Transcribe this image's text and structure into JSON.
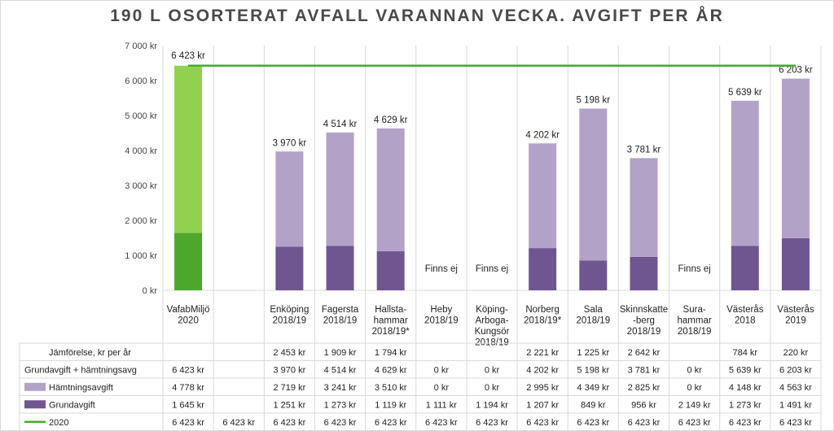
{
  "chart_data": {
    "type": "bar",
    "title": "190 L OSORTERAT AVFALL VARANNAN VECKA. AVGIFT PER ÅR",
    "ylim": [
      0,
      7000
    ],
    "yticks": [
      "0 kr",
      "1 000 kr",
      "2 000 kr",
      "3 000 kr",
      "4 000 kr",
      "5 000 kr",
      "6 000 kr",
      "7 000 kr"
    ],
    "categories": [
      [
        "VafabMiljö",
        "2020"
      ],
      [],
      [
        "Enköping",
        "2018/19"
      ],
      [
        "Fagersta",
        "2018/19"
      ],
      [
        "Hallsta-",
        "hammar",
        "2018/19*"
      ],
      [
        "Heby",
        "2018/19"
      ],
      [
        "Köping-",
        "Arboga-",
        "Kungsör",
        "2018/19"
      ],
      [
        "Norberg",
        "2018/19*"
      ],
      [
        "Sala",
        "2018/19"
      ],
      [
        "Skinnskatte",
        "-berg",
        "2018/19"
      ],
      [
        "Sura-",
        "hammar",
        "2018/19"
      ],
      [
        "Västerås",
        "2018"
      ],
      [
        "Västerås",
        "2019"
      ]
    ],
    "colors": {
      "grund_vafab": "#4ca72c",
      "hamt_vafab": "#92d050",
      "grund": "#6f5691",
      "hamt": "#b2a2c8",
      "line2020": "#3fae2a"
    },
    "bar_labels": [
      "6 423 kr",
      "",
      "3 970 kr",
      "4 514 kr",
      "4 629 kr",
      "Finns ej",
      "Finns ej",
      "4 202 kr",
      "5 198 kr",
      "3 781 kr",
      "Finns ej",
      "5 639 kr",
      "6 203 kr"
    ],
    "series": [
      {
        "name": "Jämförelse, kr per år",
        "values": [
          null,
          null,
          2453,
          1909,
          1794,
          null,
          null,
          2221,
          1225,
          2642,
          null,
          784,
          220
        ],
        "labels": [
          "",
          "",
          "2 453 kr",
          "1 909 kr",
          "1 794 kr",
          "",
          "",
          "2 221 kr",
          "1 225 kr",
          "2 642 kr",
          "",
          "784 kr",
          "220 kr"
        ]
      },
      {
        "name": "Grundavgift + hämtningsavg",
        "values": [
          6423,
          null,
          3970,
          4514,
          4629,
          0,
          0,
          4202,
          5198,
          3781,
          0,
          5639,
          6203
        ],
        "labels": [
          "6 423 kr",
          "",
          "3 970 kr",
          "4 514 kr",
          "4 629 kr",
          "0 kr",
          "0 kr",
          "4 202 kr",
          "5 198 kr",
          "3 781 kr",
          "0 kr",
          "5 639 kr",
          "6 203 kr"
        ]
      },
      {
        "name": "Hämtningsavgift",
        "values": [
          4778,
          null,
          2719,
          3241,
          3510,
          0,
          0,
          2995,
          4349,
          2825,
          0,
          4148,
          4563
        ],
        "labels": [
          "4 778 kr",
          "",
          "2 719 kr",
          "3 241 kr",
          "3 510 kr",
          "0 kr",
          "0 kr",
          "2 995 kr",
          "4 349 kr",
          "2 825 kr",
          "0 kr",
          "4 148 kr",
          "4 563 kr"
        ]
      },
      {
        "name": "Grundavgift",
        "values": [
          1645,
          null,
          1251,
          1273,
          1119,
          1111,
          1194,
          1207,
          849,
          956,
          2149,
          1273,
          1491
        ],
        "labels": [
          "1 645 kr",
          "",
          "1 251 kr",
          "1 273 kr",
          "1 119 kr",
          "1 111 kr",
          "1 194 kr",
          "1 207 kr",
          "849 kr",
          "956 kr",
          "2 149 kr",
          "1 273 kr",
          "1 491 kr"
        ]
      },
      {
        "name": "2020",
        "values": [
          6423,
          6423,
          6423,
          6423,
          6423,
          6423,
          6423,
          6423,
          6423,
          6423,
          6423,
          6423,
          6423
        ],
        "labels": [
          "6 423 kr",
          "6 423 kr",
          "6 423 kr",
          "6 423 kr",
          "6 423 kr",
          "6 423 kr",
          "6 423 kr",
          "6 423 kr",
          "6 423 kr",
          "6 423 kr",
          "6 423 kr",
          "6 423 kr",
          "6 423 kr"
        ]
      }
    ]
  }
}
